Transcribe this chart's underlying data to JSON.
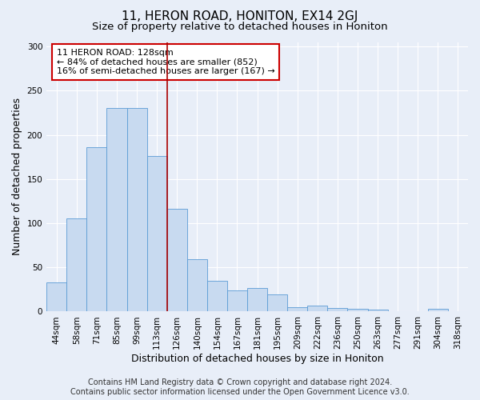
{
  "title": "11, HERON ROAD, HONITON, EX14 2GJ",
  "subtitle": "Size of property relative to detached houses in Honiton",
  "xlabel": "Distribution of detached houses by size in Honiton",
  "ylabel": "Number of detached properties",
  "categories": [
    "44sqm",
    "58sqm",
    "71sqm",
    "85sqm",
    "99sqm",
    "113sqm",
    "126sqm",
    "140sqm",
    "154sqm",
    "167sqm",
    "181sqm",
    "195sqm",
    "209sqm",
    "222sqm",
    "236sqm",
    "250sqm",
    "263sqm",
    "277sqm",
    "291sqm",
    "304sqm",
    "318sqm"
  ],
  "values": [
    33,
    105,
    186,
    230,
    230,
    176,
    116,
    59,
    35,
    24,
    27,
    19,
    5,
    7,
    4,
    3,
    2,
    0,
    0,
    3,
    0
  ],
  "bar_color": "#c8daf0",
  "bar_edge_color": "#5b9bd5",
  "vline_x_index": 6,
  "vline_color": "#aa0000",
  "annotation_text": "11 HERON ROAD: 128sqm\n← 84% of detached houses are smaller (852)\n16% of semi-detached houses are larger (167) →",
  "annotation_box_color": "#ffffff",
  "annotation_box_edge": "#cc0000",
  "ylim": [
    0,
    305
  ],
  "yticks": [
    0,
    50,
    100,
    150,
    200,
    250,
    300
  ],
  "footer_line1": "Contains HM Land Registry data © Crown copyright and database right 2024.",
  "footer_line2": "Contains public sector information licensed under the Open Government Licence v3.0.",
  "bg_color": "#e8eef8",
  "title_fontsize": 11,
  "subtitle_fontsize": 9.5,
  "xlabel_fontsize": 9,
  "ylabel_fontsize": 9,
  "tick_fontsize": 7.5,
  "footer_fontsize": 7,
  "annotation_fontsize": 8
}
